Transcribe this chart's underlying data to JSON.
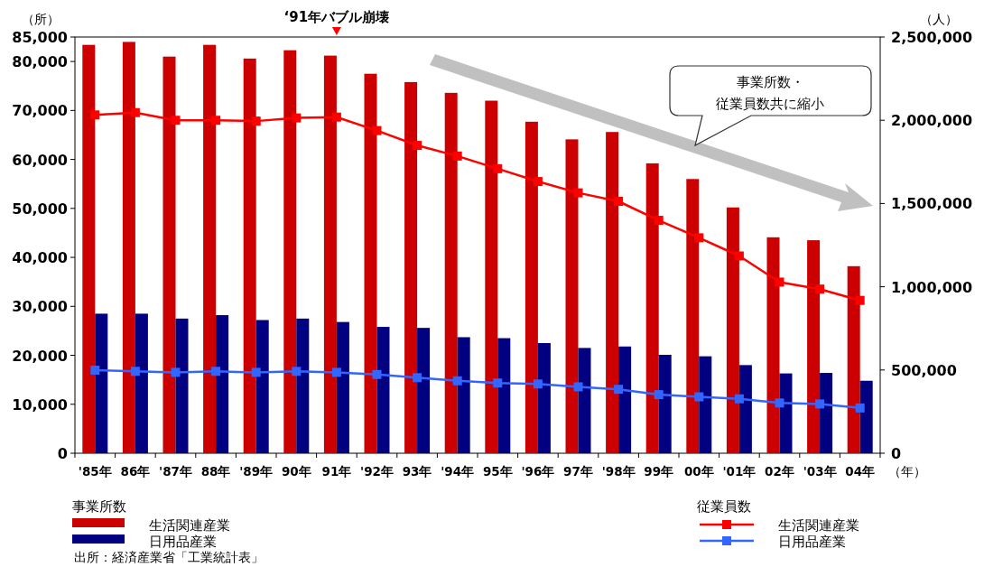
{
  "chart_data": {
    "type": "bar",
    "xlabel": "（年）",
    "ylabel": "（所）",
    "y2label": "（人）",
    "categories": [
      "'85年",
      "86年",
      "'87年",
      "88年",
      "'89年",
      "90年",
      "91年",
      "'92年",
      "93年",
      "'94年",
      "95年",
      "'96年",
      "97年",
      "'98年",
      "99年",
      "00年",
      "'01年",
      "02年",
      "'03年",
      "04年"
    ],
    "series": [
      {
        "name": "生活関連産業",
        "color": "#cc0000",
        "values": [
          83400,
          84000,
          81000,
          83400,
          80600,
          82300,
          81200,
          77500,
          75800,
          73600,
          72000,
          67700,
          64100,
          65600,
          59200,
          56000,
          50200,
          44100,
          43500,
          38200
        ]
      },
      {
        "name": "日用品産業",
        "color": "#000080",
        "values": [
          28500,
          28500,
          27500,
          28200,
          27200,
          27500,
          26800,
          25800,
          25600,
          23700,
          23500,
          22500,
          21500,
          21800,
          20100,
          19800,
          18000,
          16300,
          16400,
          14800
        ]
      },
      {
        "name": "生活関連産業",
        "type": "line",
        "axis": "y2",
        "color": "#ff0000",
        "values": [
          2032000,
          2046000,
          2000000,
          2000000,
          1995000,
          2014000,
          2019000,
          1938000,
          1849000,
          1785000,
          1709000,
          1632000,
          1564000,
          1513000,
          1399000,
          1294000,
          1185000,
          1028000,
          986000,
          918000
        ]
      },
      {
        "name": "日用品産業",
        "type": "line",
        "axis": "y2",
        "color": "#3366ff",
        "values": [
          499000,
          492000,
          486000,
          492000,
          486000,
          492000,
          486000,
          473000,
          454000,
          435000,
          422000,
          416000,
          399000,
          384000,
          352000,
          339000,
          327000,
          302000,
          296000,
          272000
        ]
      }
    ],
    "ylim": [
      0,
      85000
    ],
    "yticks": [
      0,
      {
        "value": 10000,
        "label": "10,000"
      },
      {
        "value": 20000,
        "label": "20,000"
      },
      {
        "value": 30000,
        "label": "30,000"
      },
      {
        "value": 40000,
        "label": "40,000"
      },
      {
        "value": 50000,
        "label": "50,000"
      },
      {
        "value": 60000,
        "label": "60,000"
      },
      {
        "value": 70000,
        "label": "70,000"
      },
      {
        "value": 80000,
        "label": "80,000"
      },
      {
        "value": 85000,
        "label": "85,000"
      }
    ],
    "y2lim": [
      0,
      2500000
    ],
    "y2ticks": [
      0,
      {
        "value": 500000,
        "label": "500,000"
      },
      {
        "value": 1000000,
        "label": "1,000,000"
      },
      {
        "value": 1500000,
        "label": "1,500,000"
      },
      {
        "value": 2000000,
        "label": "2,000,000"
      },
      {
        "value": 2500000,
        "label": "2,500,000"
      }
    ],
    "marker": "square",
    "legend": "bottom",
    "annotations": [
      "‘91年バブル崩壊",
      "事業所数・",
      "従業員数共に縮小",
      "事業所数",
      "従業員数",
      "出所：経済産業省「工業統計表」"
    ]
  }
}
